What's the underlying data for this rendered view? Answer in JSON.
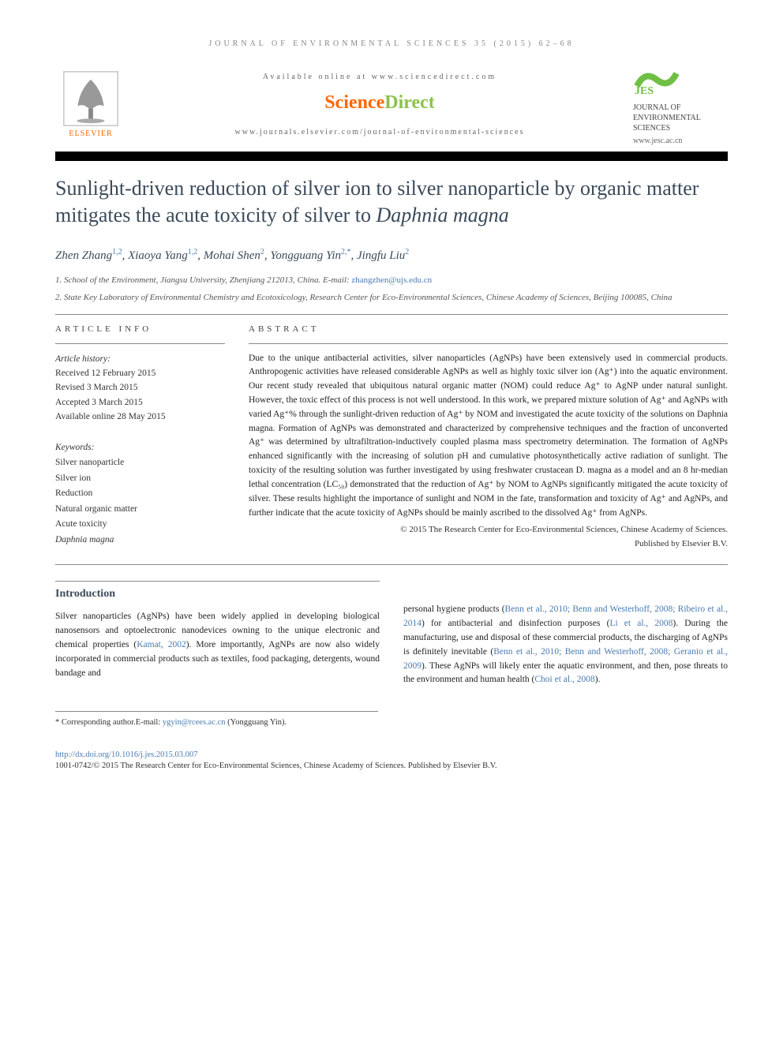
{
  "header": {
    "journal_ref": "JOURNAL OF ENVIRONMENTAL SCIENCES 35 (2015) 62–68",
    "available_online": "Available online at www.sciencedirect.com",
    "sciencedirect": {
      "part1": "Science",
      "part2": "Direct"
    },
    "journals_url": "www.journals.elsevier.com/journal-of-environmental-sciences",
    "elsevier_label": "ELSEVIER",
    "jes_name": "JOURNAL OF ENVIRONMENTAL SCIENCES",
    "jes_url": "www.jesc.ac.cn"
  },
  "title_parts": {
    "pre": "Sunlight-driven reduction of silver ion to silver nanoparticle by organic matter mitigates the acute toxicity of silver to ",
    "species": "Daphnia magna"
  },
  "authors_html": "Zhen Zhang<sup class='sup'>1,2</sup>, Xiaoya Yang<sup class='sup'>1,2</sup>, Mohai Shen<sup class='sup'>2</sup>, Yongguang Yin<sup class='sup'>2,*</sup>, Jingfu Liu<sup class='sup'>2</sup>",
  "affiliations": {
    "a1_pre": "1. School of the Environment, Jiangsu University, Zhenjiang 212013, China. E-mail: ",
    "a1_email": "zhangzhen@ujs.edu.cn",
    "a2": "2. State Key Laboratory of Environmental Chemistry and Ecotoxicology, Research Center for Eco-Environmental Sciences, Chinese Academy of Sciences, Beijing 100085, China"
  },
  "article_info": {
    "heading": "ARTICLE INFO",
    "history_label": "Article history:",
    "received": "Received 12 February 2015",
    "revised": "Revised 3 March 2015",
    "accepted": "Accepted 3 March 2015",
    "online": "Available online 28 May 2015",
    "keywords_label": "Keywords:",
    "keywords": [
      "Silver nanoparticle",
      "Silver ion",
      "Reduction",
      "Natural organic matter",
      "Acute toxicity",
      "Daphnia magna"
    ]
  },
  "abstract": {
    "heading": "ABSTRACT",
    "text": "Due to the unique antibacterial activities, silver nanoparticles (AgNPs) have been extensively used in commercial products. Anthropogenic activities have released considerable AgNPs as well as highly toxic silver ion (Ag⁺) into the aquatic environment. Our recent study revealed that ubiquitous natural organic matter (NOM) could reduce Ag⁺ to AgNP under natural sunlight. However, the toxic effect of this process is not well understood. In this work, we prepared mixture solution of Ag⁺ and AgNPs with varied Ag⁺% through the sunlight-driven reduction of Ag⁺ by NOM and investigated the acute toxicity of the solutions on Daphnia magna. Formation of AgNPs was demonstrated and characterized by comprehensive techniques and the fraction of unconverted Ag⁺ was determined by ultrafiltration-inductively coupled plasma mass spectrometry determination. The formation of AgNPs enhanced significantly with the increasing of solution pH and cumulative photosynthetically active radiation of sunlight. The toxicity of the resulting solution was further investigated by using freshwater crustacean D. magna as a model and an 8 hr-median lethal concentration (LC₅₀) demonstrated that the reduction of Ag⁺ by NOM to AgNPs significantly mitigated the acute toxicity of silver. These results highlight the importance of sunlight and NOM in the fate, transformation and toxicity of Ag⁺ and AgNPs, and further indicate that the acute toxicity of AgNPs should be mainly ascribed to the dissolved Ag⁺ from AgNPs.",
    "copyright1": "© 2015 The Research Center for Eco-Environmental Sciences, Chinese Academy of Sciences.",
    "copyright2": "Published by Elsevier B.V."
  },
  "introduction": {
    "heading": "Introduction",
    "col1": {
      "p1_pre": "Silver nanoparticles (AgNPs) have been widely applied in developing biological nanosensors and optoelectronic nanodevices owning to the unique electronic and chemical properties (",
      "c1": "Kamat, 2002",
      "p1_post": "). More importantly, AgNPs are now also widely incorporated in commercial products such as textiles, food packaging, detergents, wound bandage and"
    },
    "col2": {
      "p1_pre": "personal hygiene products (",
      "c1": "Benn et al., 2010; Benn and Westerhoff, 2008; Ribeiro et al., 2014",
      "p1_mid1": ") for antibacterial and disinfection purposes (",
      "c2": "Li et al., 2008",
      "p1_mid2": "). During the manufacturing, use and disposal of these commercial products, the discharging of AgNPs is definitely inevitable (",
      "c3": "Benn et al., 2010; Benn and Westerhoff, 2008; Geranio et al., 2009",
      "p1_mid3": "). These AgNPs will likely enter the aquatic environment, and then, pose threats to the environment and human health (",
      "c4": "Choi et al., 2008",
      "p1_post": ")."
    }
  },
  "footnote": {
    "corr_pre": "* Corresponding author.E-mail: ",
    "corr_email": "ygyin@rcees.ac.cn",
    "corr_post": " (Yongguang Yin)."
  },
  "footer": {
    "doi": "http://dx.doi.org/10.1016/j.jes.2015.03.007",
    "issn_copyright": "1001-0742/© 2015 The Research Center for Eco-Environmental Sciences, Chinese Academy of Sciences. Published by Elsevier B.V."
  },
  "colors": {
    "link": "#4a7ab0",
    "accent_orange": "#ff6600",
    "accent_green": "#8bc34a",
    "heading_color": "#3a4a5a"
  }
}
